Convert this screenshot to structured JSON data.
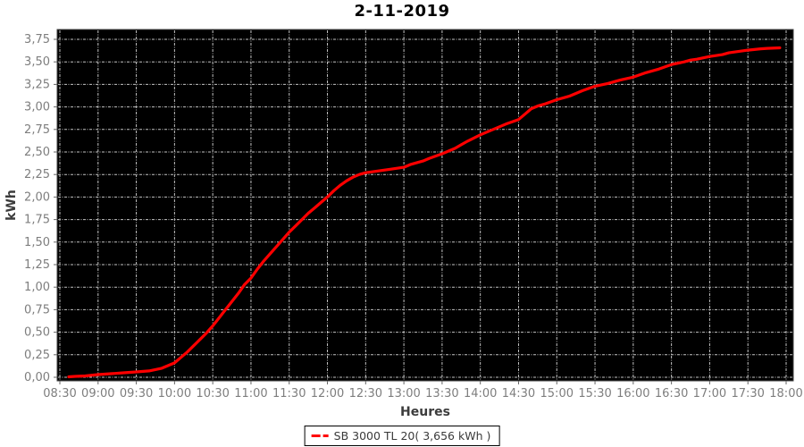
{
  "title": "2-11-2019",
  "y_axis": {
    "label": "kWh",
    "tick_labels": [
      "0,00",
      "0,25",
      "0,50",
      "0,75",
      "1,00",
      "1,25",
      "1,50",
      "1,75",
      "2,00",
      "2,25",
      "2,50",
      "2,75",
      "3,00",
      "3,25",
      "3,50",
      "3,75"
    ]
  },
  "x_axis": {
    "label": "Heures",
    "tick_labels": [
      "08:30",
      "09:00",
      "09:30",
      "10:00",
      "10:30",
      "11:00",
      "11:30",
      "12:00",
      "12:30",
      "13:00",
      "13:30",
      "14:00",
      "14:30",
      "15:00",
      "15:30",
      "16:00",
      "16:30",
      "17:00",
      "17:30",
      "18:00"
    ]
  },
  "legend": {
    "label": "SB 3000 TL 20( 3,656 kWh )"
  },
  "colors": {
    "series": "#ff0000",
    "plot_bg": "#000000",
    "plot_border": "#3f3f3f",
    "grid": "#c4c4c4",
    "tick_mark": "#666666",
    "tick_text": "#7e7e7e",
    "axis_text": "#3c3c3c",
    "title_text": "#000000"
  },
  "chart_data": {
    "type": "line",
    "title": "2-11-2019",
    "xlabel": "Heures",
    "ylabel": "kWh",
    "x_tick_labels": [
      "08:30",
      "09:00",
      "09:30",
      "10:00",
      "10:30",
      "11:00",
      "11:30",
      "12:00",
      "12:30",
      "13:00",
      "13:30",
      "14:00",
      "14:30",
      "15:00",
      "15:30",
      "16:00",
      "16:30",
      "17:00",
      "17:30",
      "18:00"
    ],
    "y_tick_labels": [
      "0,00",
      "0,25",
      "0,50",
      "0,75",
      "1,00",
      "1,25",
      "1,50",
      "1,75",
      "2,00",
      "2,25",
      "2,50",
      "2,75",
      "3,00",
      "3,25",
      "3,50",
      "3,75"
    ],
    "y_tick_step": 0.25,
    "ylim": [
      0,
      3.875
    ],
    "x_range_minutes": [
      510,
      1086
    ],
    "grid": true,
    "plot_background": "black",
    "legend_position": "bottom",
    "series": [
      {
        "name": "SB 3000 TL 20",
        "total_label": "3,656 kWh",
        "color": "#ff0000",
        "points": [
          [
            "08:37",
            0.005
          ],
          [
            "08:42",
            0.01
          ],
          [
            "08:50",
            0.015
          ],
          [
            "09:00",
            0.03
          ],
          [
            "09:10",
            0.04
          ],
          [
            "09:20",
            0.05
          ],
          [
            "09:30",
            0.06
          ],
          [
            "09:40",
            0.07
          ],
          [
            "09:50",
            0.1
          ],
          [
            "10:00",
            0.16
          ],
          [
            "10:05",
            0.22
          ],
          [
            "10:10",
            0.28
          ],
          [
            "10:15",
            0.35
          ],
          [
            "10:20",
            0.42
          ],
          [
            "10:25",
            0.49
          ],
          [
            "10:30",
            0.57
          ],
          [
            "10:35",
            0.66
          ],
          [
            "10:40",
            0.75
          ],
          [
            "10:45",
            0.84
          ],
          [
            "10:50",
            0.93
          ],
          [
            "10:55",
            1.03
          ],
          [
            "11:00",
            1.1
          ],
          [
            "11:05",
            1.2
          ],
          [
            "11:10",
            1.29
          ],
          [
            "11:15",
            1.37
          ],
          [
            "11:20",
            1.45
          ],
          [
            "11:25",
            1.53
          ],
          [
            "11:30",
            1.61
          ],
          [
            "11:35",
            1.68
          ],
          [
            "11:40",
            1.75
          ],
          [
            "11:45",
            1.82
          ],
          [
            "11:50",
            1.88
          ],
          [
            "11:55",
            1.94
          ],
          [
            "12:00",
            2.0
          ],
          [
            "12:05",
            2.07
          ],
          [
            "12:10",
            2.13
          ],
          [
            "12:15",
            2.18
          ],
          [
            "12:20",
            2.22
          ],
          [
            "12:25",
            2.25
          ],
          [
            "12:30",
            2.27
          ],
          [
            "12:40",
            2.29
          ],
          [
            "12:50",
            2.31
          ],
          [
            "13:00",
            2.33
          ],
          [
            "13:05",
            2.36
          ],
          [
            "13:15",
            2.4
          ],
          [
            "13:20",
            2.43
          ],
          [
            "13:30",
            2.48
          ],
          [
            "13:40",
            2.54
          ],
          [
            "13:45",
            2.58
          ],
          [
            "13:50",
            2.62
          ],
          [
            "14:00",
            2.69
          ],
          [
            "14:05",
            2.72
          ],
          [
            "14:15",
            2.78
          ],
          [
            "14:20",
            2.81
          ],
          [
            "14:30",
            2.86
          ],
          [
            "14:35",
            2.92
          ],
          [
            "14:40",
            2.98
          ],
          [
            "14:45",
            3.01
          ],
          [
            "14:50",
            3.03
          ],
          [
            "15:00",
            3.08
          ],
          [
            "15:10",
            3.12
          ],
          [
            "15:15",
            3.15
          ],
          [
            "15:20",
            3.18
          ],
          [
            "15:30",
            3.23
          ],
          [
            "15:40",
            3.26
          ],
          [
            "15:45",
            3.28
          ],
          [
            "15:50",
            3.3
          ],
          [
            "16:00",
            3.33
          ],
          [
            "16:10",
            3.38
          ],
          [
            "16:15",
            3.4
          ],
          [
            "16:20",
            3.42
          ],
          [
            "16:30",
            3.47
          ],
          [
            "16:40",
            3.5
          ],
          [
            "16:45",
            3.52
          ],
          [
            "16:50",
            3.53
          ],
          [
            "17:00",
            3.56
          ],
          [
            "17:10",
            3.58
          ],
          [
            "17:15",
            3.6
          ],
          [
            "17:20",
            3.61
          ],
          [
            "17:30",
            3.63
          ],
          [
            "17:40",
            3.645
          ],
          [
            "17:45",
            3.65
          ],
          [
            "17:55",
            3.656
          ]
        ]
      }
    ]
  }
}
